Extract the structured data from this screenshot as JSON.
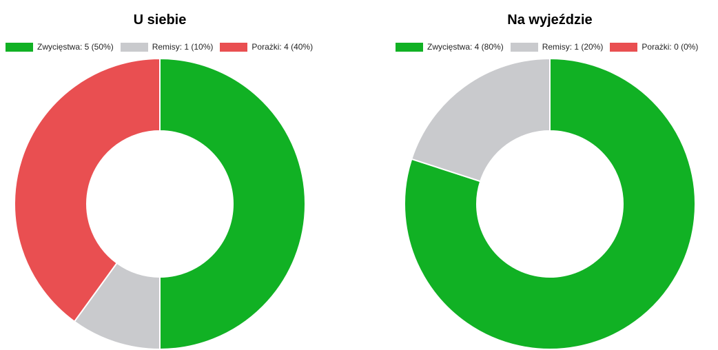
{
  "chart_data": [
    {
      "type": "pie",
      "title": "U siebie",
      "categories": [
        "Zwycięstwa",
        "Remisy",
        "Porażki"
      ],
      "values": [
        5,
        1,
        4
      ],
      "percentages": [
        50,
        10,
        40
      ],
      "colors": [
        "#11b124",
        "#c9cacd",
        "#e94f51"
      ],
      "legend_labels": [
        "Zwycięstwa: 5 (50%)",
        "Remisy: 1 (10%)",
        "Porażki: 4 (40%)"
      ],
      "legend_position": "top",
      "donut": true
    },
    {
      "type": "pie",
      "title": "Na wyjeździe",
      "categories": [
        "Zwycięstwa",
        "Remisy",
        "Porażki"
      ],
      "values": [
        4,
        1,
        0
      ],
      "percentages": [
        80,
        20,
        0
      ],
      "colors": [
        "#11b124",
        "#c9cacd",
        "#e94f51"
      ],
      "legend_labels": [
        "Zwycięstwa: 4 (80%)",
        "Remisy: 1 (20%)",
        "Porażki: 0 (0%)"
      ],
      "legend_position": "top",
      "donut": true
    }
  ]
}
